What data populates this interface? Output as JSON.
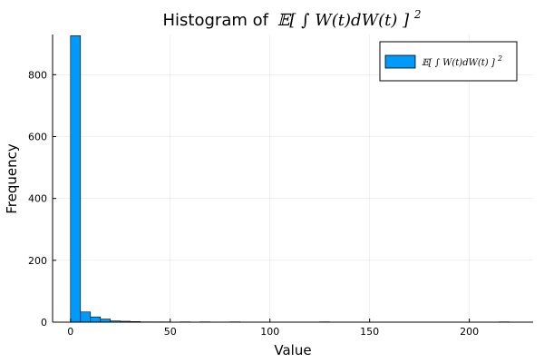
{
  "chart_data": {
    "type": "bar",
    "title": "Histogram of 𝔼[ ∫ W(t)dW(t) ]²",
    "title_prefix": "Histogram of",
    "title_math": "𝔼[ ∫ W(t)dW(t) ]",
    "title_exp": "2",
    "xlabel": "Value",
    "ylabel": "Frequency",
    "xlim": [
      -9,
      232
    ],
    "ylim": [
      0,
      930
    ],
    "xticks": [
      0,
      50,
      100,
      150,
      200
    ],
    "yticks": [
      0,
      200,
      400,
      600,
      800
    ],
    "grid": true,
    "legend_position": "top-right",
    "bin_width": 5,
    "bins_start": [
      0,
      5,
      10,
      15,
      20,
      25,
      30,
      35,
      40,
      45,
      50,
      55,
      60,
      65,
      70,
      75,
      80,
      85,
      90,
      95,
      100,
      105,
      110,
      115,
      120,
      125,
      130,
      135,
      140,
      145,
      150,
      155,
      160,
      165,
      170,
      175,
      180,
      185,
      190,
      195,
      200,
      205,
      210,
      215
    ],
    "counts": [
      926,
      33,
      17,
      10,
      4,
      3,
      2,
      1,
      1,
      1,
      0,
      1,
      0,
      1,
      0,
      0,
      1,
      0,
      0,
      0,
      0,
      0,
      0,
      0,
      0,
      1,
      0,
      0,
      0,
      0,
      0,
      0,
      0,
      0,
      0,
      0,
      0,
      0,
      0,
      0,
      0,
      0,
      0,
      1
    ],
    "series": [
      {
        "name": "𝔼[ ∫ W(t)dW(t) ]²",
        "name_math": "𝔼[ ∫ W(t)dW(t) ]",
        "name_exp": "2",
        "color": "#009AFA"
      }
    ]
  }
}
